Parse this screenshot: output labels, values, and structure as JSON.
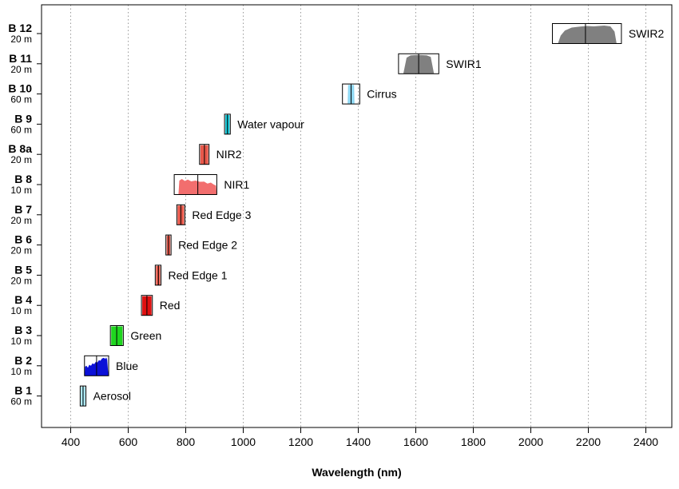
{
  "chart_data": {
    "type": "range",
    "xlabel": "Wavelength (nm)",
    "xlim": [
      370,
      2450
    ],
    "xticks": [
      400,
      600,
      800,
      1000,
      1200,
      1400,
      1600,
      1800,
      2000,
      2200,
      2400
    ],
    "grid": "vertical dotted",
    "bands": [
      {
        "band": "B 1",
        "resolution": "60 m",
        "label": "Aerosol",
        "center": 443,
        "lo": 433,
        "hi": 453,
        "fill": "#9fe3f0",
        "shape": "flat"
      },
      {
        "band": "B 2",
        "resolution": "10 m",
        "label": "Blue",
        "center": 490,
        "lo": 448,
        "hi": 532,
        "fill": "#0b10d8",
        "shape": "blue"
      },
      {
        "band": "B 3",
        "resolution": "10 m",
        "label": "Green",
        "center": 560,
        "lo": 538,
        "hi": 583,
        "fill": "#1fd61f",
        "shape": "flat"
      },
      {
        "band": "B 4",
        "resolution": "10 m",
        "label": "Red",
        "center": 665,
        "lo": 646,
        "hi": 684,
        "fill": "#e01010",
        "shape": "flat"
      },
      {
        "band": "B 5",
        "resolution": "20 m",
        "label": "Red Edge 1",
        "center": 705,
        "lo": 694,
        "hi": 714,
        "fill": "#e8584a",
        "shape": "flat"
      },
      {
        "band": "B 6",
        "resolution": "20 m",
        "label": "Red Edge 2",
        "center": 740,
        "lo": 731,
        "hi": 749,
        "fill": "#e8584a",
        "shape": "flat"
      },
      {
        "band": "B 7",
        "resolution": "20 m",
        "label": "Red Edge 3",
        "center": 783,
        "lo": 769,
        "hi": 797,
        "fill": "#e8584a",
        "shape": "flat"
      },
      {
        "band": "B 8",
        "resolution": "10 m",
        "label": "NIR1",
        "center": 842,
        "lo": 760,
        "hi": 908,
        "fill": "#f26e6e",
        "shape": "nir"
      },
      {
        "band": "B 8a",
        "resolution": "20 m",
        "label": "NIR2",
        "center": 865,
        "lo": 848,
        "hi": 881,
        "fill": "#e8584a",
        "shape": "flat"
      },
      {
        "band": "B 9",
        "resolution": "60 m",
        "label": "Water vapour",
        "center": 945,
        "lo": 935,
        "hi": 955,
        "fill": "#12c8d8",
        "shape": "flat"
      },
      {
        "band": "B 10",
        "resolution": "60 m",
        "label": "Cirrus",
        "center": 1375,
        "lo": 1345,
        "hi": 1405,
        "fill": "#8fd8f3",
        "shape": "narrow"
      },
      {
        "band": "B 11",
        "resolution": "20 m",
        "label": "SWIR1",
        "center": 1610,
        "lo": 1540,
        "hi": 1680,
        "fill": "#808080",
        "shape": "swir1"
      },
      {
        "band": "B 12",
        "resolution": "20 m",
        "label": "SWIR2",
        "center": 2190,
        "lo": 2075,
        "hi": 2315,
        "fill": "#808080",
        "shape": "swir2"
      }
    ]
  }
}
